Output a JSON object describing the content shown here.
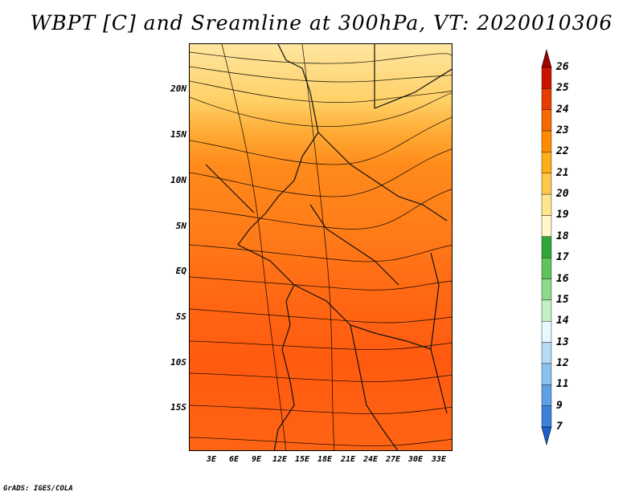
{
  "title": "WBPT [C] and Sreamline at 300hPa, VT: 2020010306",
  "credit": "GrADS: IGES/COLA",
  "map": {
    "lat_labels": [
      "20N",
      "15N",
      "10N",
      "5N",
      "EQ",
      "5S",
      "10S",
      "15S"
    ],
    "lon_labels": [
      "3E",
      "6E",
      "9E",
      "12E",
      "15E",
      "18E",
      "21E",
      "24E",
      "27E",
      "30E",
      "33E"
    ]
  },
  "colorbar": {
    "labels": [
      "26",
      "25",
      "24",
      "23",
      "22",
      "21",
      "20",
      "19",
      "18",
      "17",
      "16",
      "15",
      "14",
      "13",
      "12",
      "11",
      "9",
      "7"
    ],
    "colors": [
      "#a00000",
      "#c81400",
      "#e63c00",
      "#f56a00",
      "#ff8c00",
      "#ffae18",
      "#ffc84a",
      "#ffe68c",
      "#fff7c8",
      "#2fa83a",
      "#5cc45a",
      "#8fd98a",
      "#c4efc0",
      "#e8f8ff",
      "#b5dcf5",
      "#8bc3ee",
      "#5ea2e6",
      "#3a82dc",
      "#1e5ed0"
    ]
  }
}
